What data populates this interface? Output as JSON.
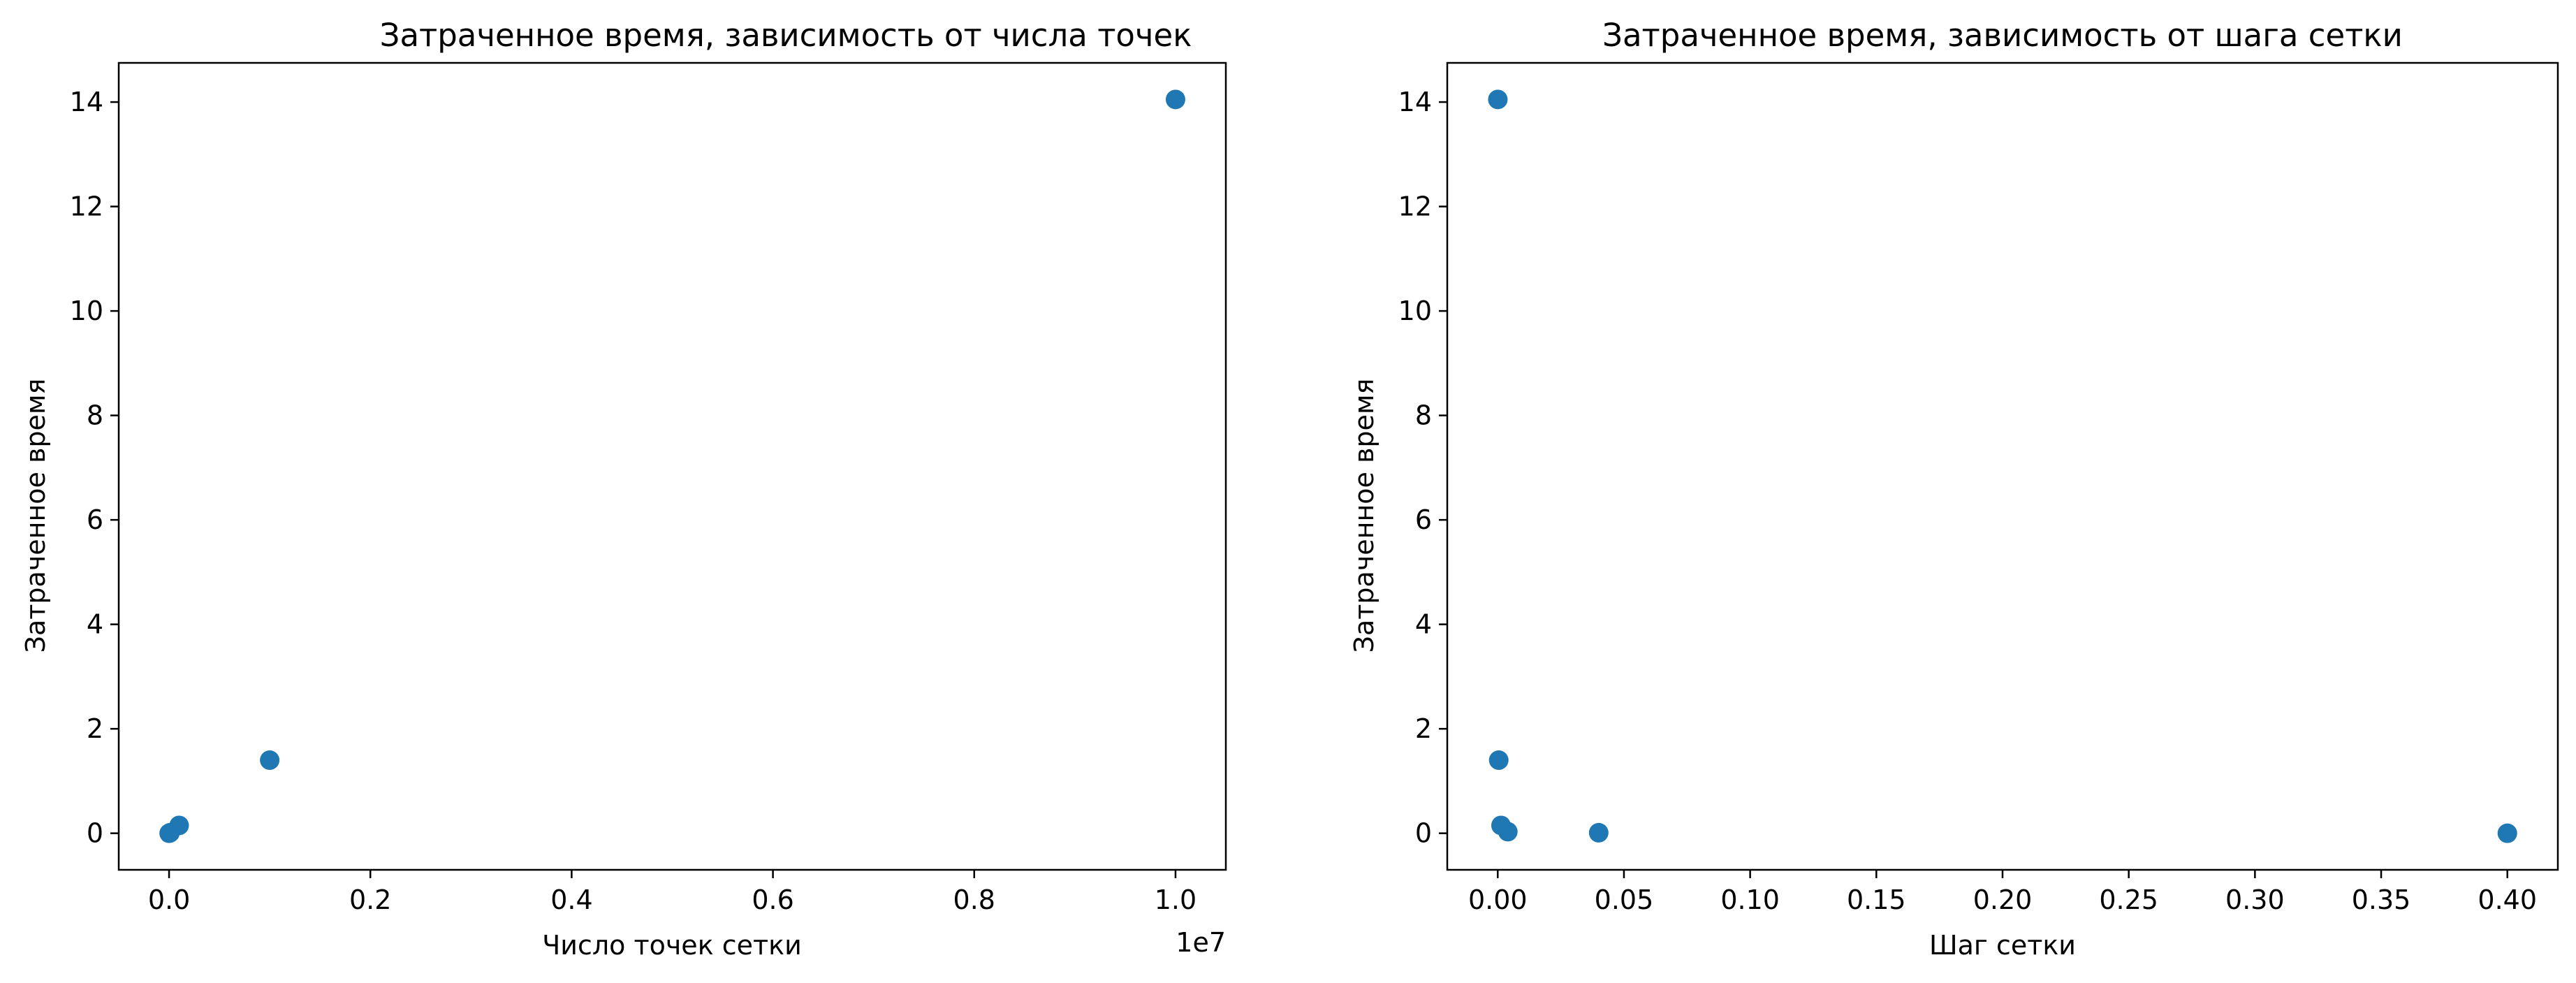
{
  "chart_data": [
    {
      "type": "scatter",
      "title": "Затраченное время, зависимость от числа точек",
      "xlabel": "Число точек сетки",
      "ylabel": "Затраченное время",
      "x_offset_text": "1e7",
      "xlim": [
        -0.05,
        1.05
      ],
      "ylim": [
        -0.7,
        14.75
      ],
      "xticks": [
        0.0,
        0.2,
        0.4,
        0.6,
        0.8,
        1.0
      ],
      "xtick_labels": [
        "0.0",
        "0.2",
        "0.4",
        "0.6",
        "0.8",
        "1.0"
      ],
      "yticks": [
        0,
        2,
        4,
        6,
        8,
        10,
        12,
        14
      ],
      "ytick_labels": [
        "0",
        "2",
        "4",
        "6",
        "8",
        "10",
        "12",
        "14"
      ],
      "grid": false,
      "marker_color": "#1f77b4",
      "points": [
        {
          "x": 0.0001,
          "y": 0.0
        },
        {
          "x": 0.001,
          "y": 0.01
        },
        {
          "x": 0.01,
          "y": 0.15
        },
        {
          "x": 0.1,
          "y": 1.4
        },
        {
          "x": 1.0,
          "y": 14.05
        }
      ]
    },
    {
      "type": "scatter",
      "title": "Затраченное время, зависимость от шага сетки",
      "xlabel": "Шаг сетки",
      "ylabel": "Затраченное время",
      "xlim": [
        -0.02,
        0.42
      ],
      "ylim": [
        -0.7,
        14.75
      ],
      "xticks": [
        0.0,
        0.05,
        0.1,
        0.15,
        0.2,
        0.25,
        0.3,
        0.35,
        0.4
      ],
      "xtick_labels": [
        "0.00",
        "0.05",
        "0.10",
        "0.15",
        "0.20",
        "0.25",
        "0.30",
        "0.35",
        "0.40"
      ],
      "yticks": [
        0,
        2,
        4,
        6,
        8,
        10,
        12,
        14
      ],
      "ytick_labels": [
        "0",
        "2",
        "4",
        "6",
        "8",
        "10",
        "12",
        "14"
      ],
      "grid": false,
      "marker_color": "#1f77b4",
      "points": [
        {
          "x": 0.4,
          "y": 0.0
        },
        {
          "x": 0.04,
          "y": 0.01
        },
        {
          "x": 0.004,
          "y": 0.03
        },
        {
          "x": 0.0013,
          "y": 0.15
        },
        {
          "x": 0.0004,
          "y": 1.4
        },
        {
          "x": 4e-05,
          "y": 14.05
        }
      ]
    }
  ]
}
